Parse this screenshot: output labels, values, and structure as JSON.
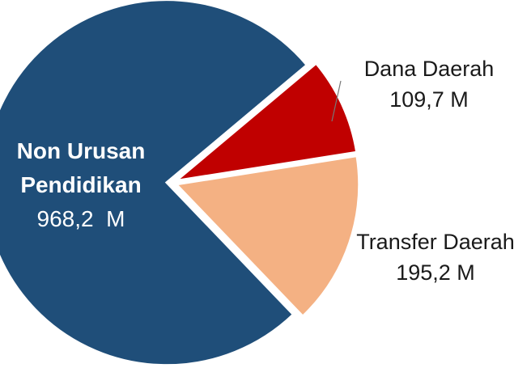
{
  "chart_data": {
    "type": "pie",
    "categories": [
      "Dana Daerah",
      "Transfer Daerah",
      "Non Urusan Pendidikan"
    ],
    "values": [
      109.7,
      195.2,
      968.2
    ],
    "value_labels": [
      "109,7 M",
      "195,2 M",
      "968,2  M"
    ],
    "colors": [
      "#c00000",
      "#f4b183",
      "#1f4e79"
    ]
  }
}
